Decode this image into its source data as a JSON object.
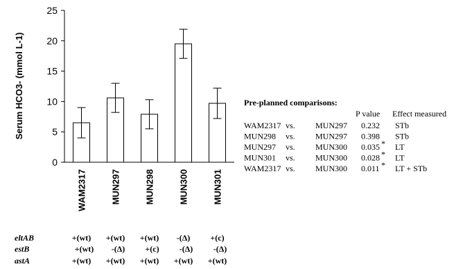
{
  "chart_data": {
    "type": "bar",
    "ylabel": "Serum HCO3- (mmol L-1)",
    "ylim": [
      0,
      25
    ],
    "yticks": [
      "0",
      "5",
      "10",
      "15",
      "20",
      "25"
    ],
    "categories": [
      "WAM2317",
      "MUN297",
      "MUN298",
      "MUN300",
      "MUN301"
    ],
    "values": [
      6.5,
      10.6,
      7.9,
      19.5,
      9.7
    ],
    "errors": [
      2.5,
      2.4,
      2.4,
      2.4,
      2.5
    ],
    "grid": false,
    "bar_fill": "#ffffff",
    "stroke_color": "#000000"
  },
  "genotypes": {
    "rows": [
      {
        "gene": "eltAB",
        "values": [
          "+(wt)",
          "+(wt)",
          "+(wt)",
          "-(Δ)",
          "+(c)"
        ]
      },
      {
        "gene": "estB",
        "values": [
          "+(wt)",
          "-(Δ)",
          "+(c)",
          "-(Δ)",
          "-(Δ)"
        ]
      },
      {
        "gene": "astA",
        "values": [
          "+(wt)",
          "+(wt)",
          "+(wt)",
          "+(wt)",
          "+(wt)"
        ]
      }
    ]
  },
  "comparisons": {
    "title": "Pre-planned comparisons:",
    "headers": {
      "pvalue": "P value",
      "effect": "Effect measured"
    },
    "rows": [
      {
        "a": "WAM2317",
        "vs": "vs.",
        "b": "MUN297",
        "p": "0.232",
        "star": "",
        "effect": "STb"
      },
      {
        "a": "MUN298",
        "vs": "vs.",
        "b": "MUN297",
        "p": "0.398",
        "star": "",
        "effect": "STb"
      },
      {
        "a": "MUN297",
        "vs": "vs.",
        "b": "MUN300",
        "p": "0.035",
        "star": "*",
        "effect": "LT"
      },
      {
        "a": "MUN301",
        "vs": "vs.",
        "b": "MUN300",
        "p": "0.028",
        "star": "*",
        "effect": "LT"
      },
      {
        "a": "WAM2317",
        "vs": "vs.",
        "b": "MUN300",
        "p": "0.011",
        "star": "*",
        "effect": "LT + STb"
      }
    ]
  }
}
